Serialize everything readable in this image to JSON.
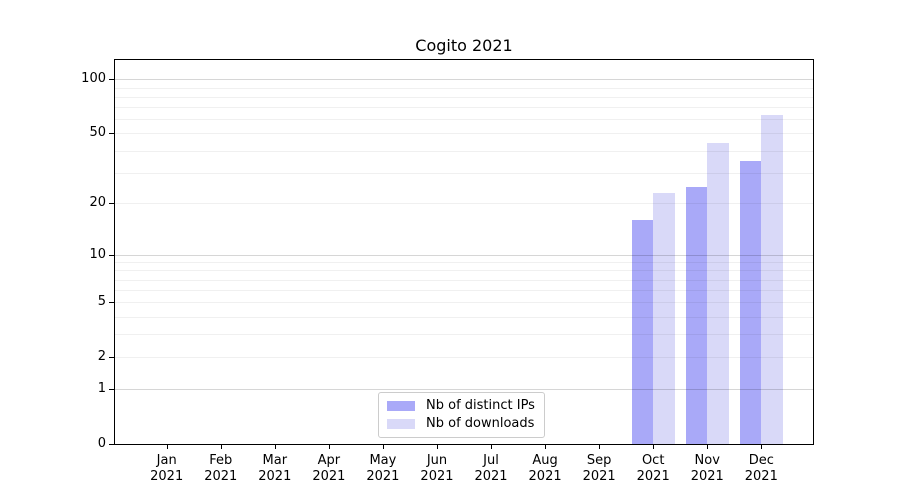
{
  "title": "Cogito 2021",
  "chart_data": {
    "type": "bar",
    "title": "Cogito 2021",
    "scale": "log1p",
    "grid": true,
    "legend_position": "lower center",
    "x_months": [
      "Jan",
      "Feb",
      "Mar",
      "Apr",
      "May",
      "Jun",
      "Jul",
      "Aug",
      "Sep",
      "Oct",
      "Nov",
      "Dec"
    ],
    "x_year": "2021",
    "series": [
      {
        "name": "Nb of distinct IPs",
        "color": "#a9a9f8",
        "values": [
          0,
          0,
          0,
          0,
          0,
          0,
          0,
          0,
          0,
          16,
          25,
          35
        ]
      },
      {
        "name": "Nb of downloads",
        "color": "#d9d9f8",
        "values": [
          0,
          0,
          0,
          0,
          0,
          0,
          0,
          0,
          0,
          23,
          44,
          63
        ]
      }
    ],
    "y_tick_values": [
      0,
      1,
      2,
      5,
      10,
      20,
      50,
      100
    ],
    "y_tick_labels": [
      "0",
      "1",
      "2",
      "5",
      "10",
      "20",
      "50",
      "100"
    ],
    "gridlines_major": [
      1,
      10,
      100
    ],
    "gridlines_minor": [
      2,
      3,
      4,
      5,
      6,
      7,
      8,
      9,
      20,
      30,
      40,
      50,
      60,
      70,
      80,
      90
    ],
    "ylim": [
      0,
      128
    ]
  },
  "colors": {
    "ips_bar": "#a9a9f8",
    "downloads_bar": "#d9d9f8",
    "axis": "#000000",
    "legend_border": "#cccccc"
  }
}
